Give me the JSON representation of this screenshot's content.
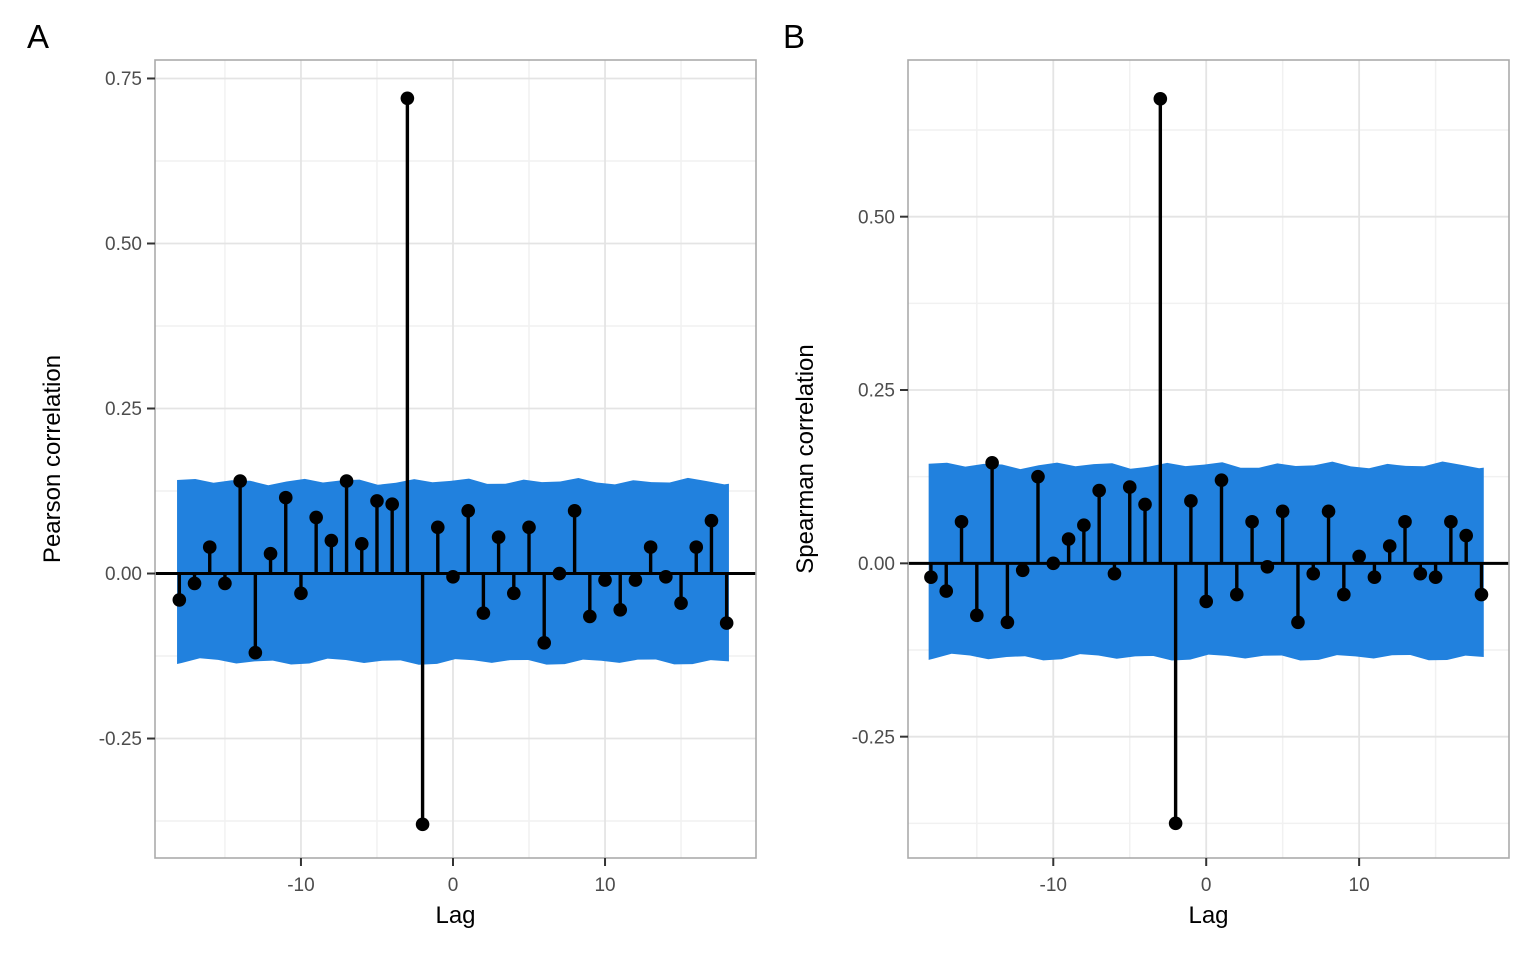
{
  "figure": {
    "background": "#ffffff",
    "text_color": "#000000",
    "tick_label_color": "#4d4d4d",
    "grid_major_color": "#e4e4e4",
    "grid_minor_color": "#f1f1f1",
    "panel_border_color": "#ababab",
    "tick_mark_color": "#333333"
  },
  "chart_data": [
    {
      "type": "scatter",
      "subtype": "stem-lollipop-ccf",
      "panel_label": "A",
      "xlabel": "Lag",
      "ylabel": "Pearson correlation",
      "x": [
        -18,
        -17,
        -16,
        -15,
        -14,
        -13,
        -12,
        -11,
        -10,
        -9,
        -8,
        -7,
        -6,
        -5,
        -4,
        -3,
        -2,
        -1,
        0,
        1,
        2,
        3,
        4,
        5,
        6,
        7,
        8,
        9,
        10,
        11,
        12,
        13,
        14,
        15,
        16,
        17,
        18
      ],
      "values": [
        -0.04,
        -0.015,
        0.04,
        -0.015,
        0.14,
        -0.12,
        0.03,
        0.115,
        -0.03,
        0.085,
        0.05,
        0.14,
        0.045,
        0.11,
        0.105,
        0.72,
        -0.38,
        0.07,
        -0.005,
        0.095,
        -0.06,
        0.055,
        -0.03,
        0.07,
        -0.105,
        0.0,
        0.095,
        -0.065,
        -0.01,
        -0.055,
        -0.01,
        0.04,
        -0.005,
        -0.045,
        0.04,
        0.08,
        -0.075
      ],
      "confidence_band": {
        "upper": 0.1395,
        "lower": -0.1335,
        "color": "#2181de",
        "x_start": -18.15,
        "x_end": 18.15
      },
      "stem_color": "#000000",
      "point_color": "#000000",
      "grid": true,
      "xlim": [
        -19.6,
        19.93
      ],
      "ylim": [
        -0.431,
        0.778
      ],
      "xticks": {
        "values": [
          -10,
          0,
          10
        ],
        "labels": [
          "-10",
          "0",
          "10"
        ]
      },
      "yticks": {
        "values": [
          0.75,
          0.5,
          0.25,
          0,
          -0.25
        ],
        "labels": [
          "0.75",
          "0.50",
          "0.25",
          "0.00",
          "-0.25"
        ]
      },
      "minor_xticks": [
        -15,
        -5,
        5,
        15
      ],
      "minor_yticks": [
        0.625,
        0.375,
        0.125,
        -0.125,
        -0.375
      ]
    },
    {
      "type": "scatter",
      "subtype": "stem-lollipop-ccf",
      "panel_label": "B",
      "xlabel": "Lag",
      "ylabel": "Spearman correlation",
      "x": [
        -18,
        -17,
        -16,
        -15,
        -14,
        -13,
        -12,
        -11,
        -10,
        -9,
        -8,
        -7,
        -6,
        -5,
        -4,
        -3,
        -2,
        -1,
        0,
        1,
        2,
        3,
        4,
        5,
        6,
        7,
        8,
        9,
        10,
        11,
        12,
        13,
        14,
        15,
        16,
        17,
        18
      ],
      "values": [
        -0.02,
        -0.04,
        0.06,
        -0.075,
        0.145,
        -0.085,
        -0.01,
        0.125,
        0.0,
        0.035,
        0.055,
        0.105,
        -0.015,
        0.11,
        0.085,
        0.67,
        -0.375,
        0.09,
        -0.055,
        0.12,
        -0.045,
        0.06,
        -0.005,
        0.075,
        -0.085,
        -0.015,
        0.075,
        -0.045,
        0.01,
        -0.02,
        0.025,
        0.06,
        -0.015,
        -0.02,
        0.06,
        0.04,
        -0.045
      ],
      "confidence_band": {
        "upper": 0.1415,
        "lower": -0.1355,
        "color": "#2181de",
        "x_start": -18.15,
        "x_end": 18.15
      },
      "stem_color": "#000000",
      "point_color": "#000000",
      "grid": true,
      "xlim": [
        -19.5,
        19.8
      ],
      "ylim": [
        -0.425,
        0.726
      ],
      "xticks": {
        "values": [
          -10,
          0,
          10
        ],
        "labels": [
          "-10",
          "0",
          "10"
        ]
      },
      "yticks": {
        "values": [
          0.5,
          0.25,
          0,
          -0.25
        ],
        "labels": [
          "0.50",
          "0.25",
          "0.00",
          "-0.25"
        ]
      },
      "minor_xticks": [
        -15,
        -5,
        5,
        15
      ],
      "minor_yticks": [
        0.625,
        0.375,
        0.125,
        -0.125,
        -0.375
      ]
    }
  ]
}
